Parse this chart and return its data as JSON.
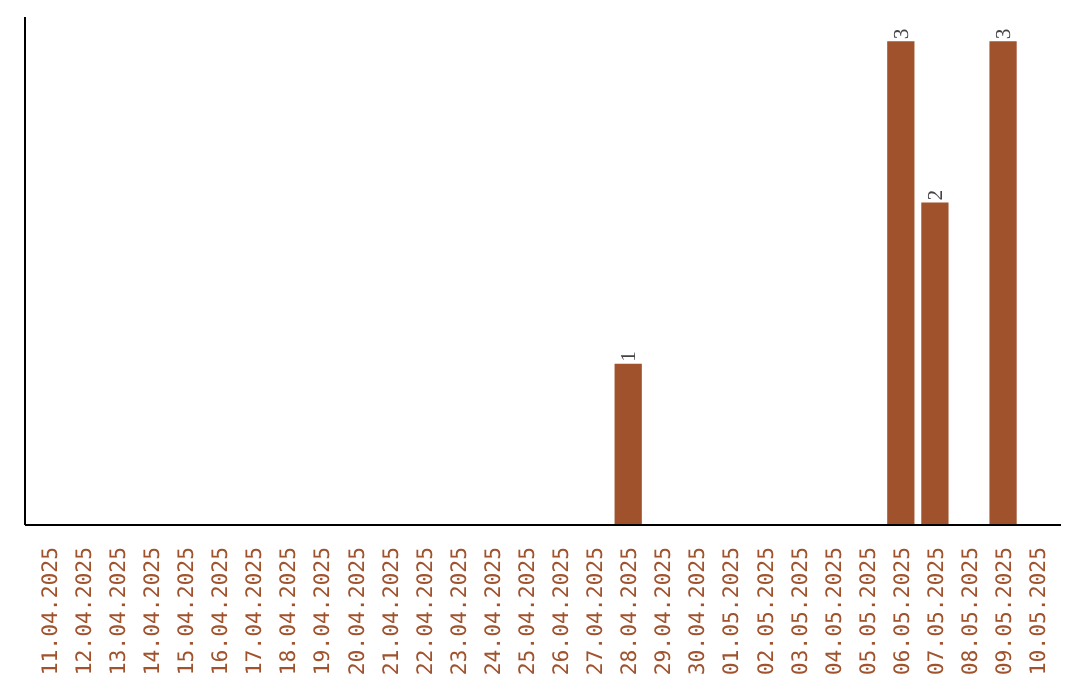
{
  "chart_data": {
    "type": "bar",
    "categories": [
      "11.04.2025",
      "12.04.2025",
      "13.04.2025",
      "14.04.2025",
      "15.04.2025",
      "16.04.2025",
      "17.04.2025",
      "18.04.2025",
      "19.04.2025",
      "20.04.2025",
      "21.04.2025",
      "22.04.2025",
      "23.04.2025",
      "24.04.2025",
      "25.04.2025",
      "26.04.2025",
      "27.04.2025",
      "28.04.2025",
      "29.04.2025",
      "30.04.2025",
      "01.05.2025",
      "02.05.2025",
      "03.05.2025",
      "04.05.2025",
      "05.05.2025",
      "06.05.2025",
      "07.05.2025",
      "08.05.2025",
      "09.05.2025",
      "10.05.2025"
    ],
    "values": [
      null,
      null,
      null,
      null,
      null,
      null,
      null,
      null,
      null,
      null,
      null,
      null,
      null,
      null,
      null,
      null,
      null,
      1,
      null,
      null,
      null,
      null,
      null,
      null,
      null,
      3,
      2,
      null,
      3,
      null
    ],
    "color": "#a0522d",
    "data_labels": true,
    "tick_labels": "x",
    "grid": false
  }
}
